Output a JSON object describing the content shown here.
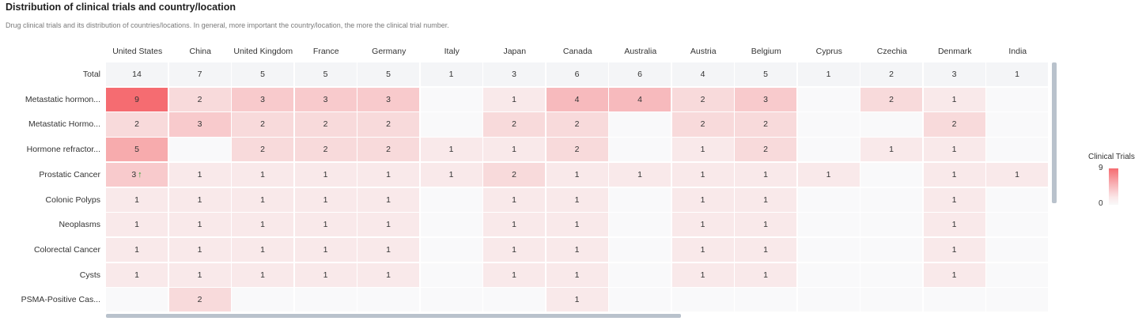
{
  "header": {
    "title": "Distribution of clinical trials and country/location",
    "subtitle": "Drug clinical trials and its distribution of countries/locations. In general, more important the country/location, the more the clinical trial number."
  },
  "legend": {
    "title": "Clinical Trials",
    "max_label": "9",
    "min_label": "0"
  },
  "colors": {
    "low": "#f9f9f9",
    "high": "#f56c71",
    "total_row": "#f4f5f7",
    "empty": "#f9f9fa",
    "trend_arrow": "#2ca02c",
    "scrollbar": "#b9c2cc"
  },
  "chart_data": {
    "type": "heatmap",
    "x_categories": [
      "United States",
      "China",
      "United Kingdom",
      "France",
      "Germany",
      "Italy",
      "Japan",
      "Canada",
      "Australia",
      "Austria",
      "Belgium",
      "Cyprus",
      "Czechia",
      "Denmark",
      "India"
    ],
    "y_categories": [
      "Total",
      "Metastatic hormon...",
      "Metastatic Hormo...",
      "Hormone refractor...",
      "Prostatic Cancer",
      "Colonic Polyps",
      "Neoplasms",
      "Colorectal Cancer",
      "Cysts",
      "PSMA-Positive Cas..."
    ],
    "values": [
      [
        14,
        7,
        5,
        5,
        5,
        1,
        3,
        6,
        6,
        4,
        5,
        1,
        2,
        3,
        1
      ],
      [
        9,
        2,
        3,
        3,
        3,
        null,
        1,
        4,
        4,
        2,
        3,
        null,
        2,
        1,
        null
      ],
      [
        2,
        3,
        2,
        2,
        2,
        null,
        2,
        2,
        null,
        2,
        2,
        null,
        null,
        2,
        null
      ],
      [
        5,
        null,
        2,
        2,
        2,
        1,
        1,
        2,
        null,
        1,
        2,
        null,
        1,
        1,
        null
      ],
      [
        3,
        1,
        1,
        1,
        1,
        1,
        2,
        1,
        1,
        1,
        1,
        1,
        null,
        1,
        1
      ],
      [
        1,
        1,
        1,
        1,
        1,
        null,
        1,
        1,
        null,
        1,
        1,
        null,
        null,
        1,
        null
      ],
      [
        1,
        1,
        1,
        1,
        1,
        null,
        1,
        1,
        null,
        1,
        1,
        null,
        null,
        1,
        null
      ],
      [
        1,
        1,
        1,
        1,
        1,
        null,
        1,
        1,
        null,
        1,
        1,
        null,
        null,
        1,
        null
      ],
      [
        1,
        1,
        1,
        1,
        1,
        null,
        1,
        1,
        null,
        1,
        1,
        null,
        null,
        1,
        null
      ],
      [
        null,
        2,
        null,
        null,
        null,
        null,
        null,
        1,
        null,
        null,
        null,
        null,
        null,
        null,
        null
      ]
    ],
    "color_range": [
      0,
      9
    ],
    "trend_markers": [
      {
        "row": 4,
        "col": 0,
        "symbol": "↑"
      }
    ],
    "legend_position": "right"
  }
}
